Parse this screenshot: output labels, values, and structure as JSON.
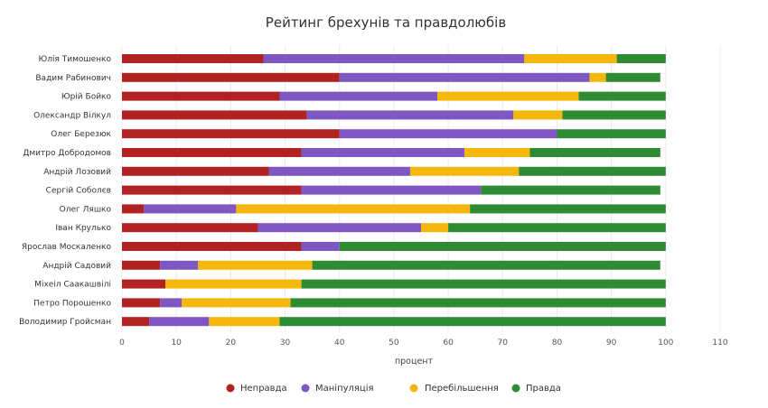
{
  "chart_data": {
    "type": "bar",
    "orientation": "horizontal",
    "stacked": true,
    "title": "Рейтинг брехунів та правдолюбів",
    "xlabel": "процент",
    "ylabel": "",
    "xlim": [
      0,
      110
    ],
    "x_ticks": [
      0,
      10,
      20,
      30,
      40,
      50,
      60,
      70,
      80,
      90,
      100,
      110
    ],
    "grid": true,
    "legend_position": "bottom",
    "categories": [
      "Юлія Тимошенко",
      "Вадим Рабинович",
      "Юрій Бойко",
      "Олександр Вілкул",
      "Олег Березюк",
      "Дмитро Добродомов",
      "Андрій Лозовий",
      "Сергій Соболєв",
      "Олег Ляшко",
      "Іван Крулько",
      "Ярослав Москаленко",
      "Андрій Садовий",
      "Міхеіл Саакашвілі",
      "Петро Порошенко",
      "Володимир Гройсман"
    ],
    "series": [
      {
        "name": "Неправда",
        "color": "#b22222",
        "values": [
          26,
          40,
          29,
          34,
          40,
          33,
          27,
          33,
          4,
          25,
          33,
          7,
          8,
          7,
          5
        ]
      },
      {
        "name": "Маніпуляція",
        "color": "#7e57c2",
        "values": [
          48,
          46,
          29,
          38,
          40,
          30,
          26,
          33,
          17,
          30,
          7,
          7,
          0,
          4,
          11
        ]
      },
      {
        "name": "Перебільшення",
        "color": "#f5b70c",
        "values": [
          17,
          3,
          26,
          9,
          0,
          12,
          20,
          0,
          43,
          5,
          0,
          21,
          25,
          20,
          13
        ]
      },
      {
        "name": "Правда",
        "color": "#2e8b34",
        "values": [
          9,
          10,
          16,
          19,
          20,
          24,
          27,
          33,
          36,
          40,
          60,
          64,
          67,
          69,
          71
        ]
      }
    ]
  }
}
